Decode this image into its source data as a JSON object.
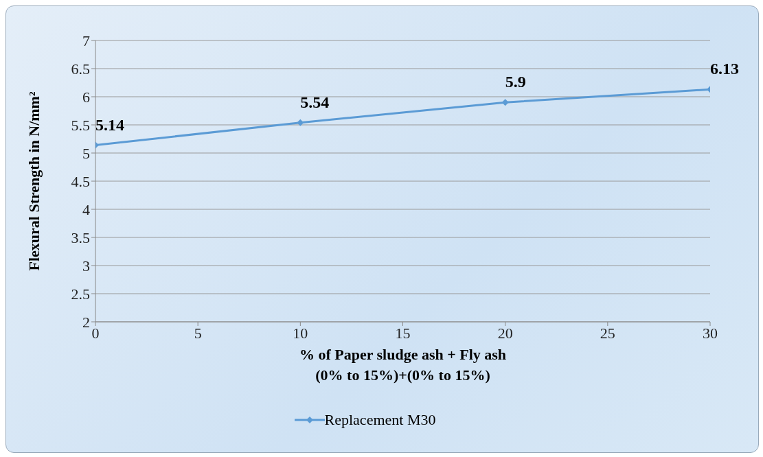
{
  "chart_data": {
    "type": "line",
    "xlabel": "% of Paper sludge ash + Fly ash\n(0% to 15%)+(0% to 15%)",
    "ylabel": "Flexural Strength in N/mm²",
    "x": [
      0,
      10,
      20,
      30
    ],
    "series": [
      {
        "name": "Replacement M30",
        "color": "#5b9bd5",
        "values": [
          5.14,
          5.54,
          5.9,
          6.13
        ]
      }
    ],
    "xlim": [
      0,
      30
    ],
    "xticks": [
      0,
      5,
      10,
      15,
      20,
      25,
      30
    ],
    "ylim": [
      2,
      7
    ],
    "yticks": [
      2,
      2.5,
      3,
      3.5,
      4,
      4.5,
      5,
      5.5,
      6,
      6.5,
      7
    ],
    "grid": "y",
    "legend": "bottom",
    "marker": "diamond",
    "line_style": "solid",
    "data_labels": true
  }
}
